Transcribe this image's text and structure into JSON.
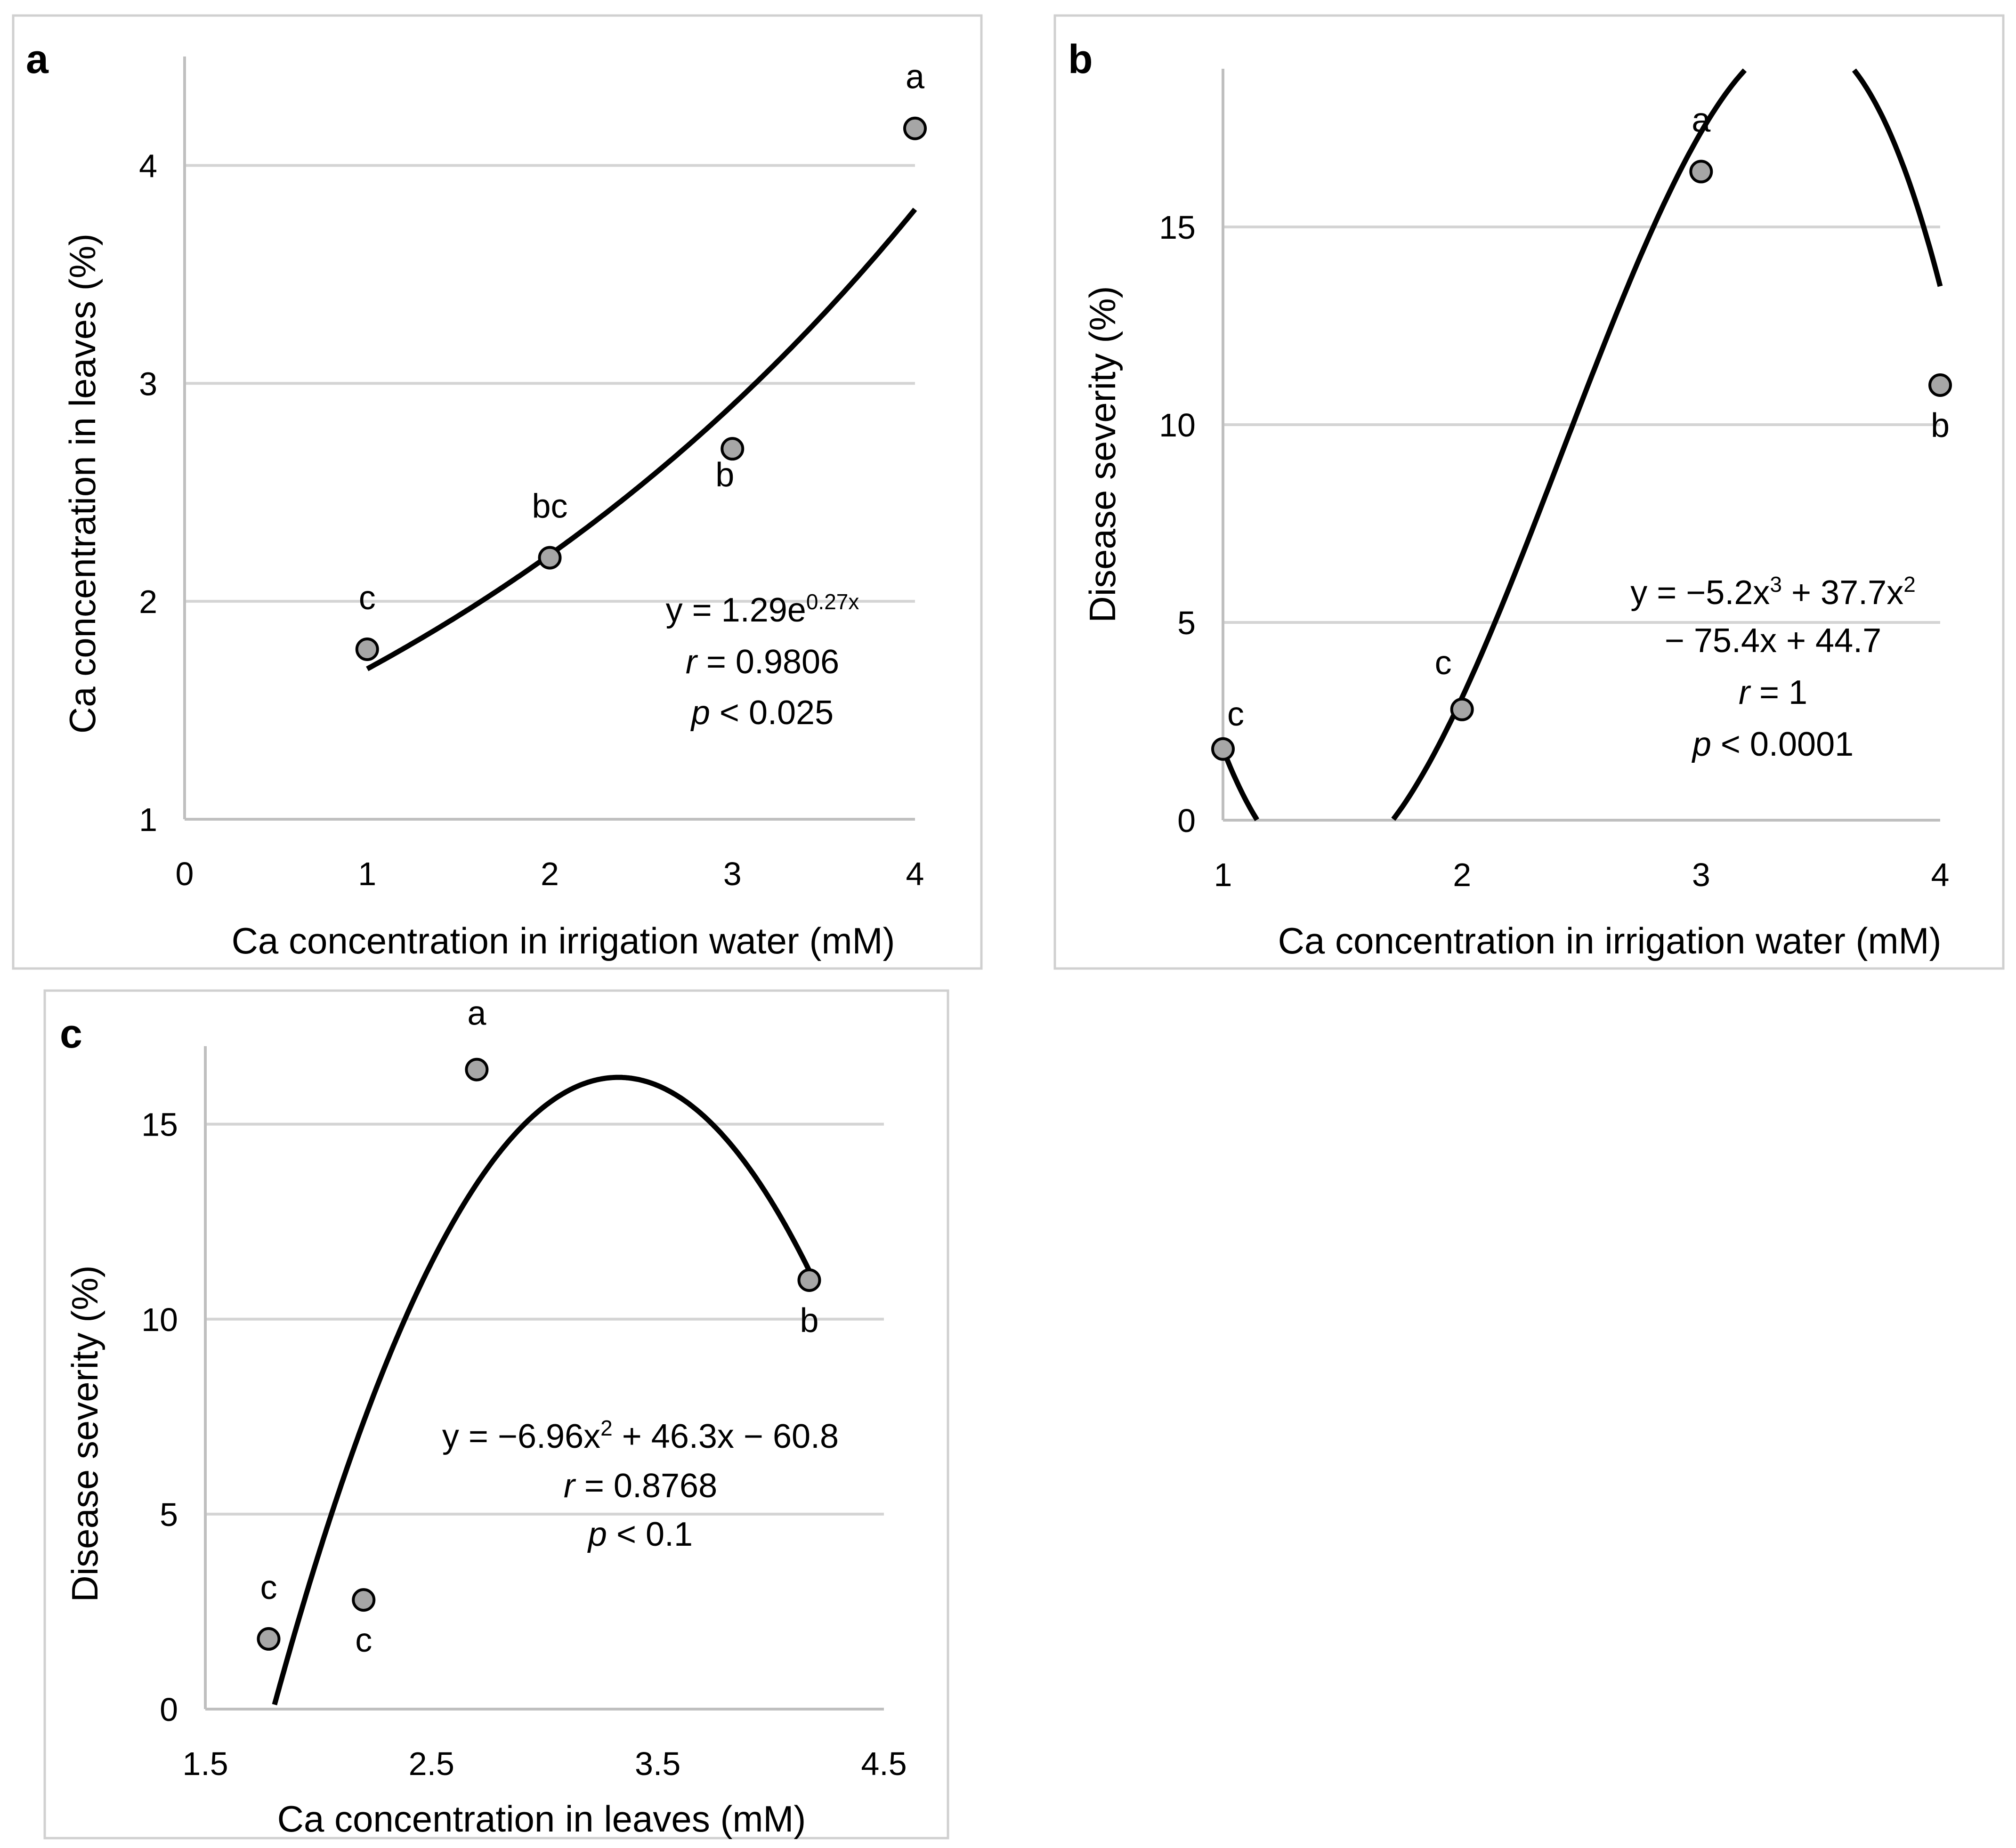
{
  "colors": {
    "marker": "#a6a6a6",
    "curve": "#000000",
    "gridline": "#d4d4d4"
  },
  "chart_data": [
    {
      "panel": "a",
      "type": "scatter",
      "xlabel": "Ca concentration in irrigation water (mM)",
      "ylabel": "Ca concentration in leaves (%)",
      "xlim": [
        0,
        4
      ],
      "ylim": [
        1,
        4.5
      ],
      "xticks": [
        "0",
        "1",
        "2",
        "3",
        "4"
      ],
      "yticks": [
        "1",
        "2",
        "3",
        "4"
      ],
      "x": [
        1,
        2,
        3,
        4
      ],
      "y": [
        1.78,
        2.2,
        2.7,
        4.17
      ],
      "letters": [
        "c",
        "bc",
        "b",
        "a"
      ],
      "fit": {
        "kind": "exponential",
        "a": 1.29,
        "b": 0.27,
        "xrange": [
          1,
          4
        ]
      },
      "equation": {
        "pre": "y = 1.29e",
        "sup": "0.27x",
        "r_value": " = 0.9806",
        "p_value": " < 0.025"
      },
      "r_label": "r",
      "p_label": "p"
    },
    {
      "panel": "b",
      "type": "scatter",
      "xlabel": "Ca concentration in irrigation water (mM)",
      "ylabel": "Disease severity (%)",
      "xlim": [
        1,
        4
      ],
      "ylim": [
        0,
        19
      ],
      "xticks": [
        "1",
        "2",
        "3",
        "4"
      ],
      "yticks": [
        "0",
        "5",
        "10",
        "15"
      ],
      "x": [
        1,
        2,
        3,
        4
      ],
      "y": [
        1.8,
        2.8,
        16.4,
        11.0
      ],
      "letters": [
        "c",
        "c",
        "a",
        "b"
      ],
      "fit": {
        "kind": "polynomial",
        "coeffs": [
          -5.2,
          37.7,
          -75.4,
          44.7
        ],
        "xrange": [
          1,
          4
        ]
      },
      "equation": {
        "line1": "y = −5.2x",
        "sup1": "3",
        "mid1": " + 37.7x",
        "sup2": "2",
        "line2": "− 75.4x + 44.7",
        "r_value": " = 1",
        "p_value": " < 0.0001"
      },
      "r_label": "r",
      "p_label": "p"
    },
    {
      "panel": "c",
      "type": "scatter",
      "xlabel": "Ca concentration in leaves (mM)",
      "ylabel": "Disease severity (%)",
      "xlim": [
        1.5,
        4.5
      ],
      "ylim": [
        0,
        17
      ],
      "xticks": [
        "1.5",
        "2.5",
        "3.5",
        "4.5"
      ],
      "yticks": [
        "0",
        "5",
        "10",
        "15"
      ],
      "x": [
        1.78,
        2.2,
        2.7,
        4.17
      ],
      "y": [
        1.8,
        2.8,
        16.4,
        11.0
      ],
      "letters": [
        "c",
        "c",
        "a",
        "b"
      ],
      "fit": {
        "kind": "polynomial",
        "coeffs": [
          -6.96,
          46.3,
          -60.8
        ],
        "xrange": [
          1.8,
          4.17
        ]
      },
      "equation": {
        "pre": "y = −6.96x",
        "sup": "2",
        "post": " + 46.3x − 60.8",
        "r_value": " = 0.8768",
        "p_value": " < 0.1"
      },
      "r_label": "r",
      "p_label": "p"
    }
  ]
}
